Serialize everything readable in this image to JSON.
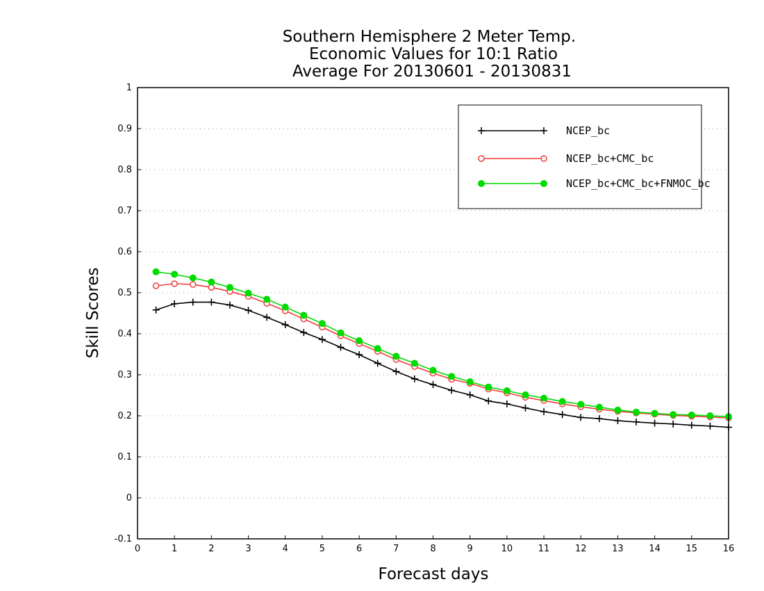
{
  "chart_data": {
    "type": "line",
    "title_lines": [
      "Southern Hemisphere 2 Meter Temp.",
      "Economic Values for 10:1 Ratio",
      "Average For 20130601 - 20130831"
    ],
    "xlabel": "Forecast days",
    "ylabel": "Skill Scores",
    "xlim": [
      0,
      16
    ],
    "ylim": [
      -0.1,
      1
    ],
    "x_ticks": [
      "0",
      "1",
      "2",
      "3",
      "4",
      "5",
      "6",
      "7",
      "8",
      "9",
      "10",
      "11",
      "12",
      "13",
      "14",
      "15",
      "16"
    ],
    "y_ticks": [
      "-0.1",
      "0",
      "0.1",
      "0.2",
      "0.3",
      "0.4",
      "0.5",
      "0.6",
      "0.7",
      "0.8",
      "0.9",
      "1"
    ],
    "grid": "horizontal dotted",
    "legend_position": "top-right",
    "x": [
      0.5,
      1,
      1.5,
      2,
      2.5,
      3,
      3.5,
      4,
      4.5,
      5,
      5.5,
      6,
      6.5,
      7,
      7.5,
      8,
      8.5,
      9,
      9.5,
      10,
      10.5,
      11,
      11.5,
      12,
      12.5,
      13,
      13.5,
      14,
      14.5,
      15,
      15.5,
      16
    ],
    "series": [
      {
        "name": "NCEP_bc",
        "color": "#000000",
        "marker": "plus",
        "values": [
          0.458,
          0.473,
          0.477,
          0.477,
          0.47,
          0.457,
          0.44,
          0.422,
          0.403,
          0.386,
          0.367,
          0.349,
          0.328,
          0.308,
          0.29,
          0.276,
          0.262,
          0.251,
          0.236,
          0.229,
          0.219,
          0.21,
          0.203,
          0.196,
          0.193,
          0.188,
          0.185,
          0.182,
          0.18,
          0.177,
          0.175,
          0.172
        ]
      },
      {
        "name": "NCEP_bc+CMC_bc",
        "color": "#f03c3c",
        "marker": "open-circle",
        "values": [
          0.517,
          0.522,
          0.52,
          0.513,
          0.503,
          0.491,
          0.474,
          0.456,
          0.436,
          0.416,
          0.395,
          0.376,
          0.357,
          0.337,
          0.32,
          0.304,
          0.289,
          0.279,
          0.265,
          0.256,
          0.245,
          0.237,
          0.229,
          0.222,
          0.216,
          0.211,
          0.207,
          0.204,
          0.201,
          0.199,
          0.197,
          0.195
        ]
      },
      {
        "name": "NCEP_bc+CMC_bc+FNMOC_bc",
        "color": "#00dc00",
        "marker": "filled-circle",
        "values": [
          0.551,
          0.545,
          0.536,
          0.526,
          0.513,
          0.499,
          0.484,
          0.465,
          0.445,
          0.425,
          0.402,
          0.383,
          0.364,
          0.345,
          0.328,
          0.311,
          0.296,
          0.283,
          0.27,
          0.261,
          0.251,
          0.243,
          0.235,
          0.228,
          0.221,
          0.214,
          0.209,
          0.206,
          0.203,
          0.202,
          0.2,
          0.198
        ]
      }
    ]
  }
}
